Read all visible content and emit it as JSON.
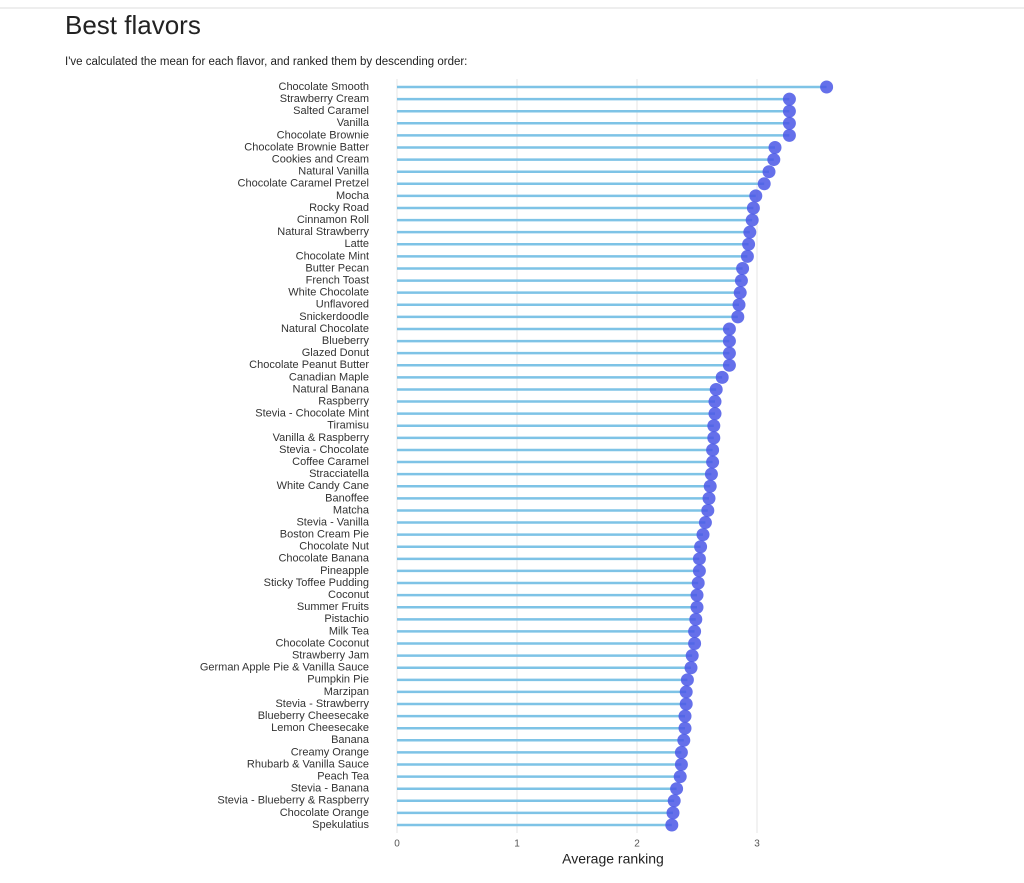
{
  "chart_data": {
    "type": "lollipop",
    "title": "Best flavors",
    "subtitle": "I've calculated the mean for each flavor, and ranked them by descending order:",
    "xlabel": "Average ranking",
    "categories": [
      "Chocolate Smooth",
      "Strawberry Cream",
      "Salted Caramel",
      "Vanilla",
      "Chocolate Brownie",
      "Chocolate Brownie Batter",
      "Cookies and Cream",
      "Natural Vanilla",
      "Chocolate Caramel Pretzel",
      "Mocha",
      "Rocky Road",
      "Cinnamon Roll",
      "Natural Strawberry",
      "Latte",
      "Chocolate Mint",
      "Butter Pecan",
      "French Toast",
      "White Chocolate",
      "Unflavored",
      "Snickerdoodle",
      "Natural Chocolate",
      "Blueberry",
      "Glazed Donut",
      "Chocolate Peanut Butter",
      "Canadian Maple",
      "Natural Banana",
      "Raspberry",
      "Stevia - Chocolate Mint",
      "Tiramisu",
      "Vanilla & Raspberry",
      "Stevia - Chocolate",
      "Coffee Caramel",
      "Stracciatella",
      "White Candy Cane",
      "Banoffee",
      "Matcha",
      "Stevia - Vanilla",
      "Boston Cream Pie",
      "Chocolate Nut",
      "Chocolate Banana",
      "Pineapple",
      "Sticky Toffee Pudding",
      "Coconut",
      "Summer Fruits",
      "Pistachio",
      "Milk Tea",
      "Chocolate Coconut",
      "Strawberry Jam",
      "German Apple Pie & Vanilla Sauce",
      "Pumpkin Pie",
      "Marzipan",
      "Stevia - Strawberry",
      "Blueberry Cheesecake",
      "Lemon Cheesecake",
      "Banana",
      "Creamy Orange",
      "Rhubarb & Vanilla Sauce",
      "Peach Tea",
      "Stevia - Banana",
      "Stevia - Blueberry & Raspberry",
      "Chocolate Orange",
      "Spekulatius"
    ],
    "values": [
      3.58,
      3.27,
      3.27,
      3.27,
      3.27,
      3.15,
      3.14,
      3.1,
      3.06,
      2.99,
      2.97,
      2.96,
      2.94,
      2.93,
      2.92,
      2.88,
      2.87,
      2.86,
      2.85,
      2.84,
      2.77,
      2.77,
      2.77,
      2.77,
      2.71,
      2.66,
      2.65,
      2.65,
      2.64,
      2.64,
      2.63,
      2.63,
      2.62,
      2.61,
      2.6,
      2.59,
      2.57,
      2.55,
      2.53,
      2.52,
      2.52,
      2.51,
      2.5,
      2.5,
      2.49,
      2.48,
      2.48,
      2.46,
      2.45,
      2.42,
      2.41,
      2.41,
      2.4,
      2.4,
      2.39,
      2.37,
      2.37,
      2.36,
      2.33,
      2.31,
      2.3,
      2.29
    ],
    "color": "#4a57e6",
    "line_color": "#7ec3e6",
    "xlim": [
      0,
      3.6
    ],
    "xticks": [
      0,
      1,
      2,
      3
    ],
    "grid": true
  }
}
